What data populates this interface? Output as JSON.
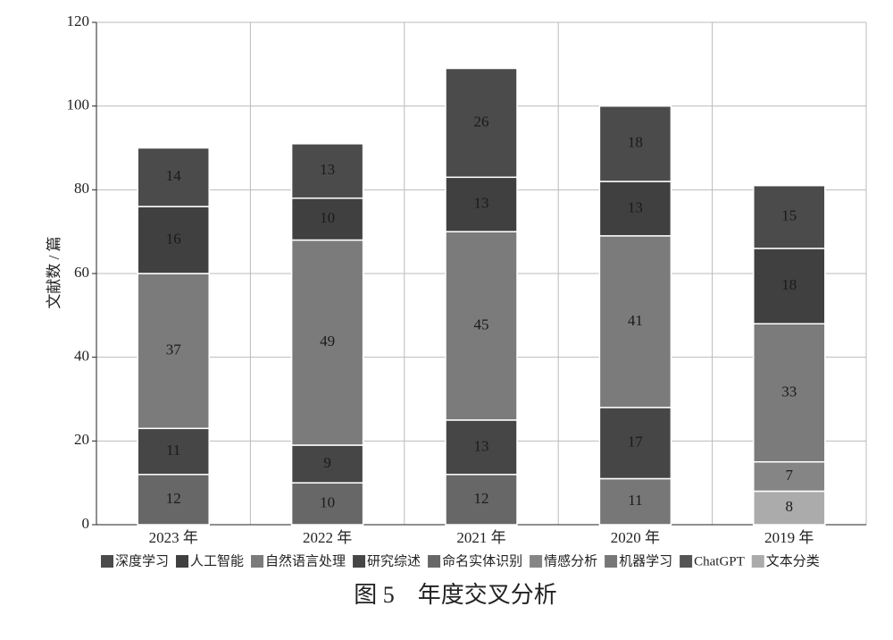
{
  "chart_data": {
    "type": "stacked_bar",
    "title": "图 5　年度交叉分析",
    "y_label": "文献数 / 篇",
    "categories": [
      "2023 年",
      "2022 年",
      "2021 年",
      "2020 年",
      "2019 年"
    ],
    "series": [
      {
        "name": "深度学习",
        "color": "#4b4b4b",
        "values": [
          14,
          13,
          26,
          18,
          15
        ]
      },
      {
        "name": "人工智能",
        "color": "#404040",
        "values": [
          16,
          10,
          13,
          13,
          18
        ]
      },
      {
        "name": "自然语言处理",
        "color": "#7b7b7b",
        "values": [
          37,
          49,
          45,
          41,
          33
        ]
      },
      {
        "name": "研究综述",
        "color": "#464646",
        "values": [
          11,
          9,
          13,
          17,
          null
        ]
      },
      {
        "name": "命名实体识别",
        "color": "#676767",
        "values": [
          12,
          10,
          12,
          null,
          null
        ]
      },
      {
        "name": "情感分析",
        "color": "#858585",
        "values": [
          null,
          null,
          null,
          null,
          7
        ]
      },
      {
        "name": "机器学习",
        "color": "#777777",
        "values": [
          null,
          null,
          null,
          11,
          null
        ]
      },
      {
        "name": "ChatGPT",
        "color": "#555555",
        "values": [
          null,
          null,
          null,
          null,
          null
        ]
      },
      {
        "name": "文本分类",
        "color": "#ababab",
        "values": [
          null,
          null,
          null,
          null,
          8
        ]
      }
    ],
    "ylim": [
      0,
      120
    ],
    "yticks": [
      0,
      20,
      40,
      60,
      80,
      100,
      120
    ],
    "grid": true
  }
}
